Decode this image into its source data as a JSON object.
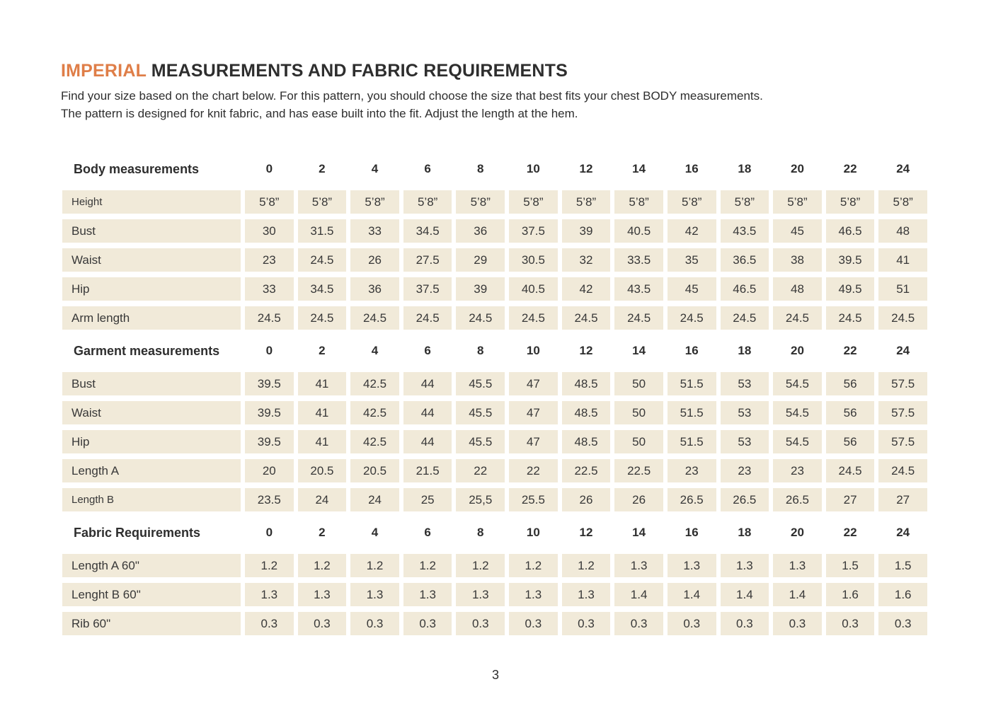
{
  "page": {
    "title_highlight": "IMPERIAL",
    "title_rest": "MEASUREMENTS AND FABRIC REQUIREMENTS",
    "intro_line1": "Find your size based on the chart below. For this pattern, you should choose the size that best fits your chest BODY measurements.",
    "intro_line2": "The pattern is designed for knit fabric, and has ease built into the fit. Adjust the length at the hem.",
    "page_number": "3"
  },
  "colors": {
    "accent_orange": "#df7e48",
    "cell_background": "#f1ead9",
    "text": "#2e2e2e"
  },
  "sizes": [
    "0",
    "2",
    "4",
    "6",
    "8",
    "10",
    "12",
    "14",
    "16",
    "18",
    "20",
    "22",
    "24"
  ],
  "sections": [
    {
      "header": "Body measurements",
      "rows": [
        {
          "label": "Height",
          "small": true,
          "values": [
            "5’8”",
            "5’8”",
            "5’8”",
            "5’8”",
            "5’8”",
            "5’8”",
            "5’8”",
            "5’8”",
            "5’8”",
            "5’8”",
            "5’8”",
            "5’8”",
            "5’8”"
          ]
        },
        {
          "label": "Bust",
          "values": [
            "30",
            "31.5",
            "33",
            "34.5",
            "36",
            "37.5",
            "39",
            "40.5",
            "42",
            "43.5",
            "45",
            "46.5",
            "48"
          ]
        },
        {
          "label": "Waist",
          "values": [
            "23",
            "24.5",
            "26",
            "27.5",
            "29",
            "30.5",
            "32",
            "33.5",
            "35",
            "36.5",
            "38",
            "39.5",
            "41"
          ]
        },
        {
          "label": "Hip",
          "values": [
            "33",
            "34.5",
            "36",
            "37.5",
            "39",
            "40.5",
            "42",
            "43.5",
            "45",
            "46.5",
            "48",
            "49.5",
            "51"
          ]
        },
        {
          "label": "Arm length",
          "values": [
            "24.5",
            "24.5",
            "24.5",
            "24.5",
            "24.5",
            "24.5",
            "24.5",
            "24.5",
            "24.5",
            "24.5",
            "24.5",
            "24.5",
            "24.5"
          ]
        }
      ]
    },
    {
      "header": "Garment measurements",
      "rows": [
        {
          "label": "Bust",
          "values": [
            "39.5",
            "41",
            "42.5",
            "44",
            "45.5",
            "47",
            "48.5",
            "50",
            "51.5",
            "53",
            "54.5",
            "56",
            "57.5"
          ]
        },
        {
          "label": "Waist",
          "values": [
            "39.5",
            "41",
            "42.5",
            "44",
            "45.5",
            "47",
            "48.5",
            "50",
            "51.5",
            "53",
            "54.5",
            "56",
            "57.5"
          ]
        },
        {
          "label": "Hip",
          "values": [
            "39.5",
            "41",
            "42.5",
            "44",
            "45.5",
            "47",
            "48.5",
            "50",
            "51.5",
            "53",
            "54.5",
            "56",
            "57.5"
          ]
        },
        {
          "label": "Length A",
          "values": [
            "20",
            "20.5",
            "20.5",
            "21.5",
            "22",
            "22",
            "22.5",
            "22.5",
            "23",
            "23",
            "23",
            "24.5",
            "24.5"
          ]
        },
        {
          "label": "Length B",
          "small": true,
          "values": [
            "23.5",
            "24",
            "24",
            "25",
            "25,5",
            "25.5",
            "26",
            "26",
            "26.5",
            "26.5",
            "26.5",
            "27",
            "27"
          ]
        }
      ]
    },
    {
      "header": "Fabric Requirements",
      "rows": [
        {
          "label": "Length A 60\"",
          "values": [
            "1.2",
            "1.2",
            "1.2",
            "1.2",
            "1.2",
            "1.2",
            "1.2",
            "1.3",
            "1.3",
            "1.3",
            "1.3",
            "1.5",
            "1.5"
          ]
        },
        {
          "label": "Lenght B 60\"",
          "values": [
            "1.3",
            "1.3",
            "1.3",
            "1.3",
            "1.3",
            "1.3",
            "1.3",
            "1.4",
            "1.4",
            "1.4",
            "1.4",
            "1.6",
            "1.6"
          ]
        },
        {
          "label": "Rib 60\"",
          "values": [
            "0.3",
            "0.3",
            "0.3",
            "0.3",
            "0.3",
            "0.3",
            "0.3",
            "0.3",
            "0.3",
            "0.3",
            "0.3",
            "0.3",
            "0.3"
          ]
        }
      ]
    }
  ]
}
